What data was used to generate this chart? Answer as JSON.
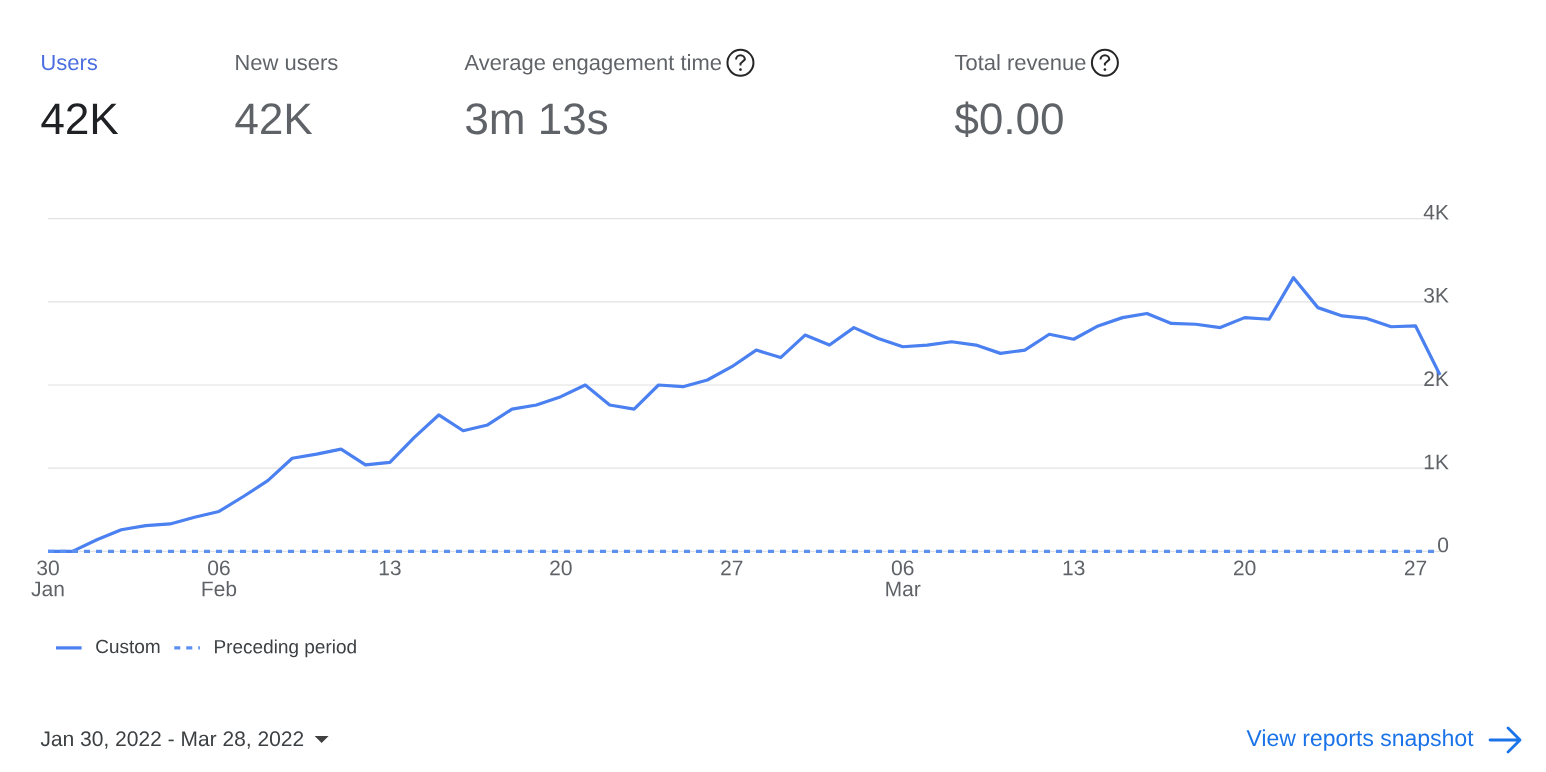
{
  "chart_data": [
    {
      "type": "other",
      "annotations": [
        "Users",
        "42K",
        "New users",
        "42K",
        "Average engagement time",
        "3m 13s",
        "Total revenue",
        "$0.00"
      ]
    },
    {
      "type": "line",
      "x": [
        "2022-01-30",
        "2022-01-31",
        "2022-02-01",
        "2022-02-02",
        "2022-02-03",
        "2022-02-04",
        "2022-02-05",
        "2022-02-06",
        "2022-02-07",
        "2022-02-08",
        "2022-02-09",
        "2022-02-10",
        "2022-02-11",
        "2022-02-12",
        "2022-02-13",
        "2022-02-14",
        "2022-02-15",
        "2022-02-16",
        "2022-02-17",
        "2022-02-18",
        "2022-02-19",
        "2022-02-20",
        "2022-02-21",
        "2022-02-22",
        "2022-02-23",
        "2022-02-24",
        "2022-02-25",
        "2022-02-26",
        "2022-02-27",
        "2022-02-28",
        "2022-03-01",
        "2022-03-02",
        "2022-03-03",
        "2022-03-04",
        "2022-03-05",
        "2022-03-06",
        "2022-03-07",
        "2022-03-08",
        "2022-03-09",
        "2022-03-10",
        "2022-03-11",
        "2022-03-12",
        "2022-03-13",
        "2022-03-14",
        "2022-03-15",
        "2022-03-16",
        "2022-03-17",
        "2022-03-18",
        "2022-03-19",
        "2022-03-20",
        "2022-03-21",
        "2022-03-22",
        "2022-03-23",
        "2022-03-24",
        "2022-03-25",
        "2022-03-26",
        "2022-03-27",
        "2022-03-28"
      ],
      "series": [
        {
          "name": "Custom",
          "color": "#4a80f0",
          "line_style": "solid",
          "values": [
            0,
            0,
            140,
            260,
            310,
            330,
            410,
            480,
            660,
            850,
            1120,
            1170,
            1230,
            1040,
            1070,
            1370,
            1640,
            1450,
            1520,
            1710,
            1760,
            1860,
            2000,
            1760,
            1710,
            2000,
            1980,
            2060,
            2220,
            2420,
            2330,
            2600,
            2480,
            2690,
            2560,
            2460,
            2480,
            2520,
            2480,
            2380,
            2420,
            2610,
            2550,
            2710,
            2810,
            2860,
            2740,
            2730,
            2690,
            2810,
            2790,
            3290,
            2930,
            2830,
            2800,
            2700,
            2710,
            2120
          ]
        },
        {
          "name": "Preceding period",
          "color": "#5b8ff2",
          "line_style": "dashed",
          "x": [
            "2022-01-30",
            "2022-03-28"
          ],
          "values": [
            0,
            0
          ]
        }
      ],
      "xlim": [
        "2022-01-30",
        "2022-03-28"
      ],
      "xticks": [
        {
          "value": "2022-01-30",
          "label": "30 Jan"
        },
        {
          "value": "2022-02-06",
          "label": "06 Feb"
        },
        {
          "value": "2022-02-13",
          "label": "13"
        },
        {
          "value": "2022-02-20",
          "label": "20"
        },
        {
          "value": "2022-02-27",
          "label": "27"
        },
        {
          "value": "2022-03-06",
          "label": "06 Mar"
        },
        {
          "value": "2022-03-13",
          "label": "13"
        },
        {
          "value": "2022-03-20",
          "label": "20"
        },
        {
          "value": "2022-03-27",
          "label": "27"
        }
      ],
      "ylim": [
        0,
        4000
      ],
      "yticks": [
        0,
        {
          "value": 1000,
          "label": "1K"
        },
        {
          "value": 2000,
          "label": "2K"
        },
        {
          "value": 3000,
          "label": "3K"
        },
        {
          "value": 4000,
          "label": "4K"
        }
      ],
      "grid": "y",
      "legend": "bottom left",
      "marker": "none",
      "annotations": [
        "Jan 30, 2022 - Mar 28, 2022",
        "View reports snapshot"
      ]
    }
  ]
}
